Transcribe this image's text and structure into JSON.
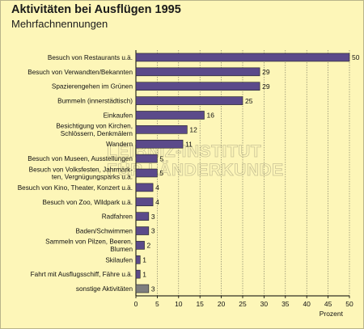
{
  "header": {
    "title": "Aktivitäten bei Ausflügen 1995",
    "subtitle": "Mehrfachnennungen"
  },
  "watermark": [
    "LEIBNIZ-INSTITUT",
    "FÜR LÄNDERKUNDE"
  ],
  "colors": {
    "bar": "#5b4a8a",
    "bar_other": "#7e7e7e",
    "background": "#fdf6b8"
  },
  "chart_data": {
    "type": "bar",
    "orientation": "horizontal",
    "title": "Aktivitäten bei Ausflügen 1995",
    "subtitle": "Mehrfachnennungen",
    "xlabel": "Prozent",
    "xlim": [
      0,
      50
    ],
    "xticks": [
      0,
      5,
      10,
      15,
      20,
      25,
      30,
      35,
      40,
      45,
      50
    ],
    "grid": true,
    "categories": [
      [
        "Besuch von Restaurants u.ä."
      ],
      [
        "Besuch von Verwandten/Bekannten"
      ],
      [
        "Spazierengehen im Grünen"
      ],
      [
        "Bummeln (innerstädtisch)"
      ],
      [
        "Einkaufen"
      ],
      [
        "Besichtigung von Kirchen,",
        "Schlössern, Denkmälern"
      ],
      [
        "Wandern"
      ],
      [
        "Besuch von Museen, Ausstellungen"
      ],
      [
        "Besuch von Volksfesten, Jahrmärk-",
        "ten, Vergnügungsparks u.ä."
      ],
      [
        "Besuch von Kino, Theater, Konzert u.ä."
      ],
      [
        "Besuch von Zoo, Wildpark u.ä."
      ],
      [
        "Radfahren"
      ],
      [
        "Baden/Schwimmen"
      ],
      [
        "Sammeln von Pilzen, Beeren,",
        "Blumen"
      ],
      [
        "Skilaufen"
      ],
      [
        "Fahrt mit Ausflugsschiff, Fähre u.ä."
      ],
      [
        "sonstige Aktivitäten"
      ]
    ],
    "values": [
      50,
      29,
      29,
      25,
      16,
      12,
      11,
      5,
      5,
      4,
      4,
      3,
      3,
      2,
      1,
      1,
      3
    ]
  }
}
